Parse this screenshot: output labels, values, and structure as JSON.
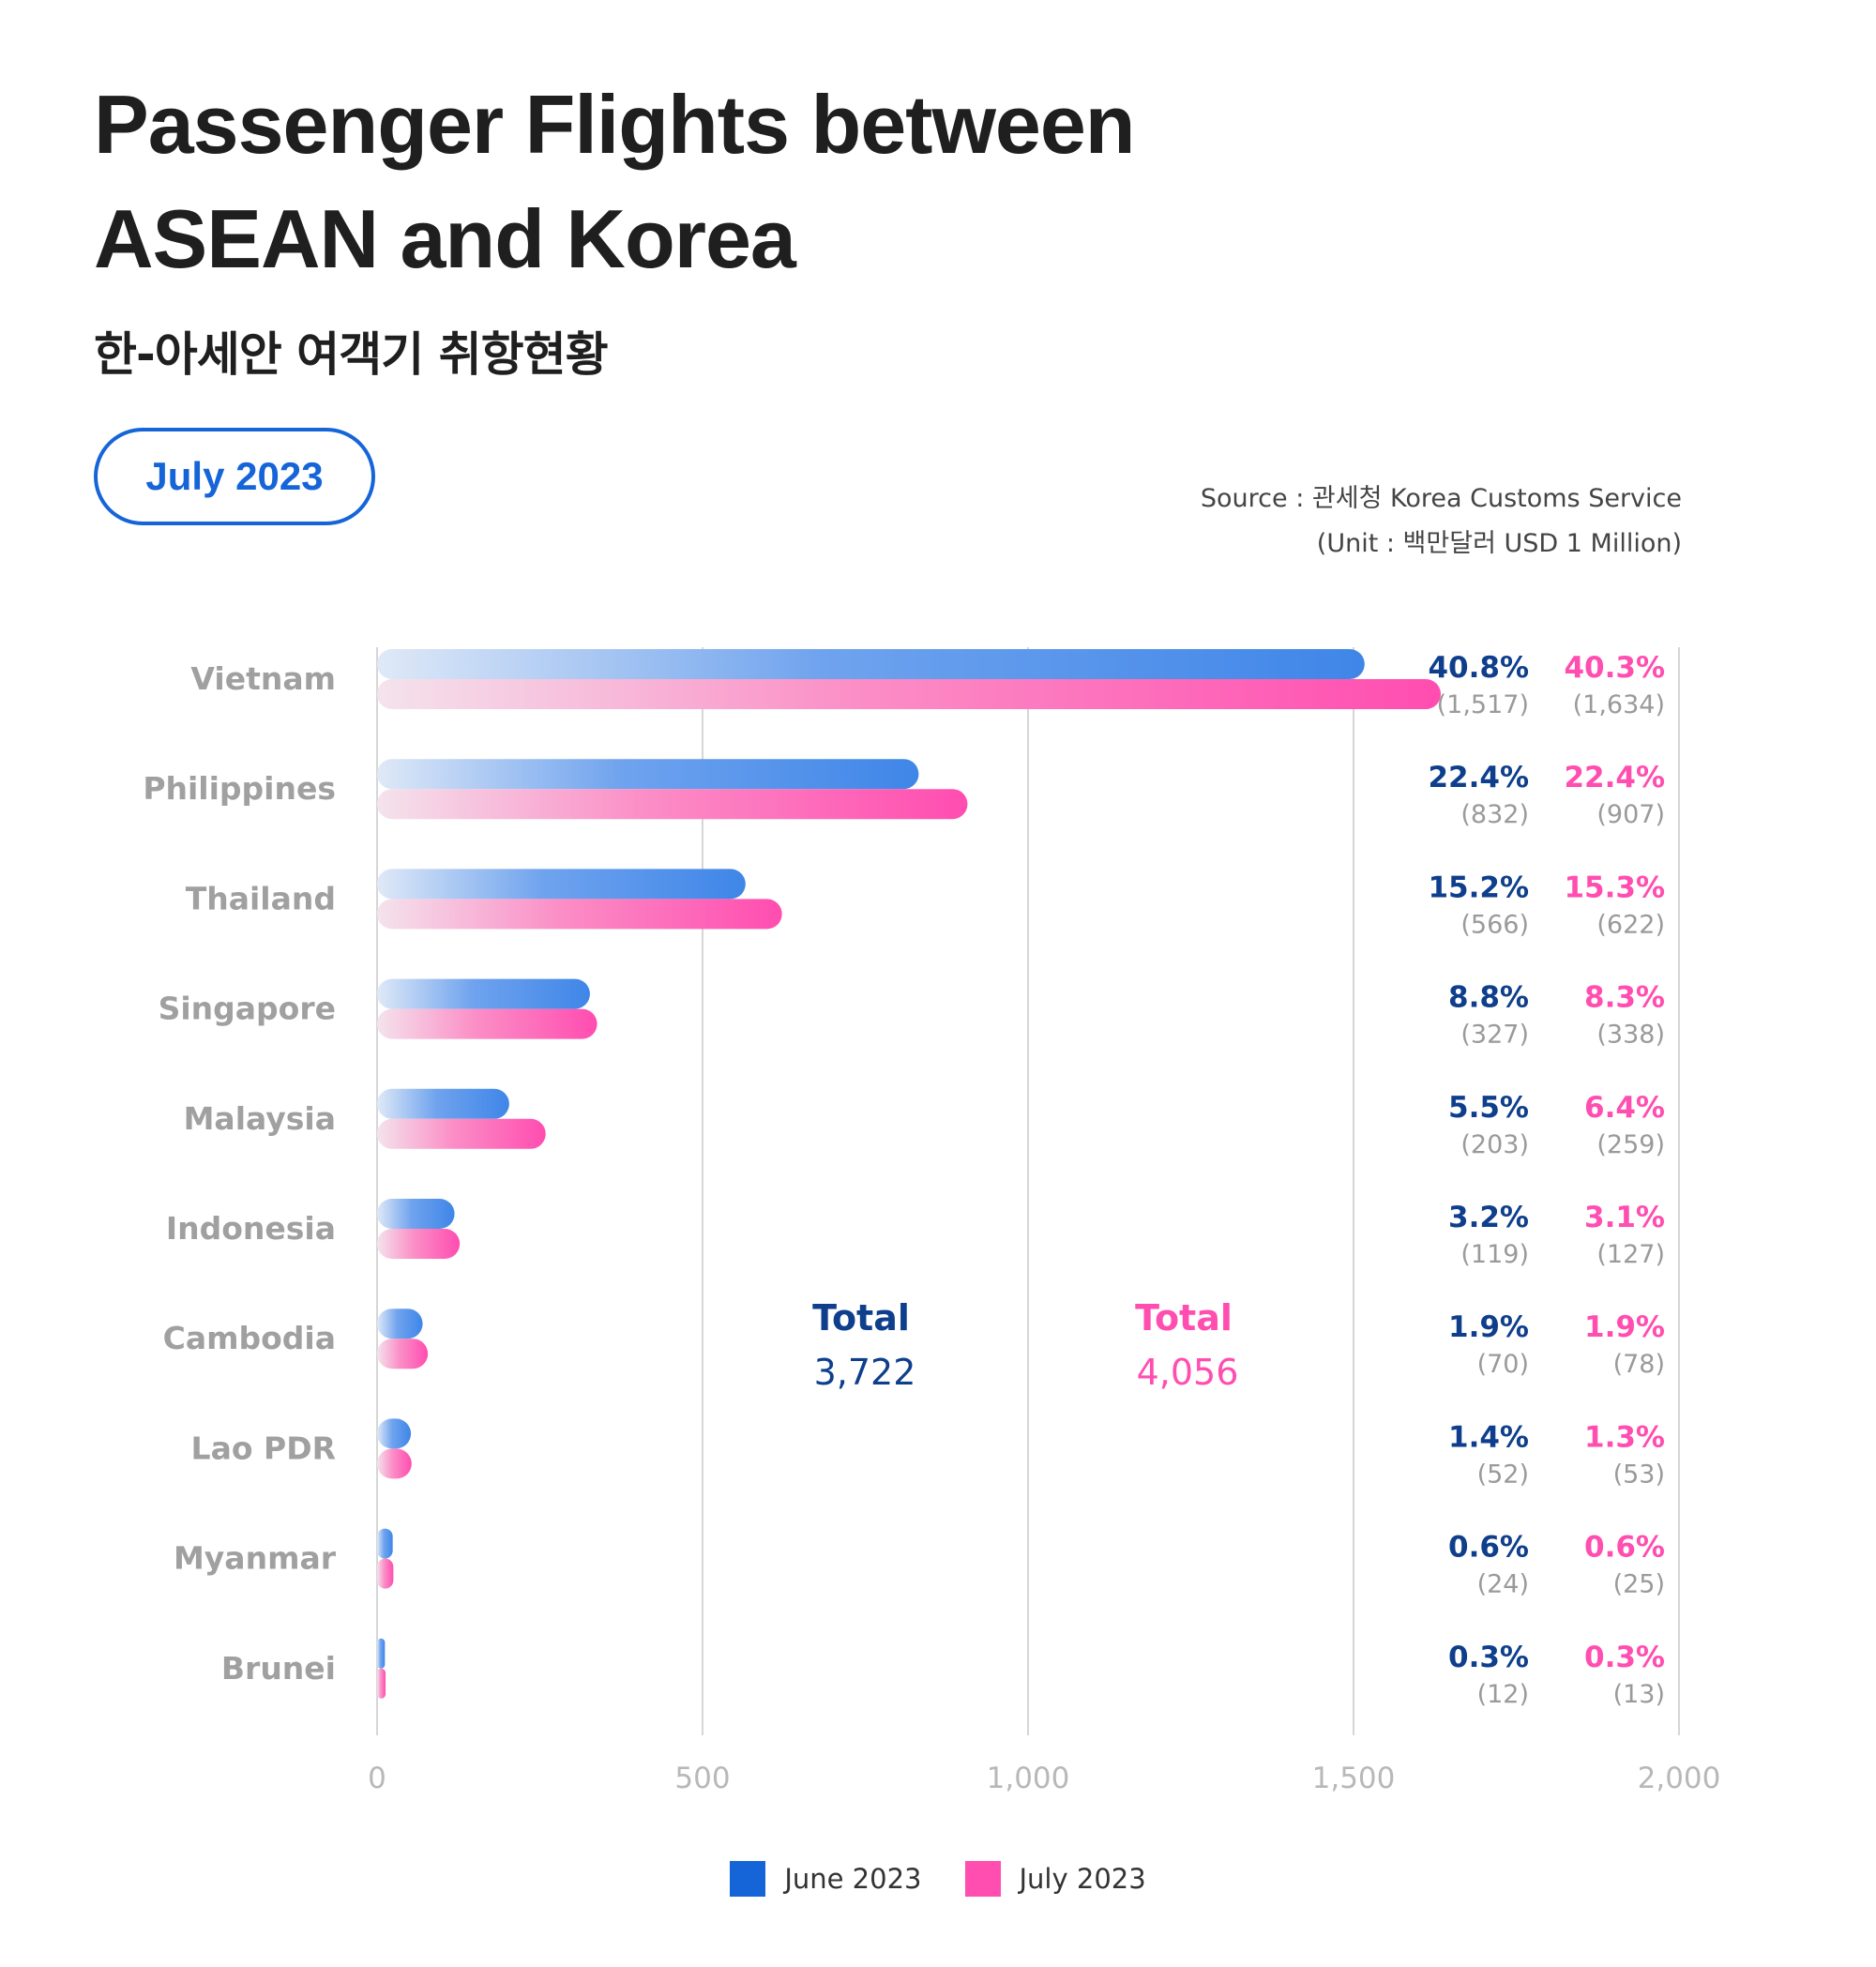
{
  "header": {
    "title_line1": "Passenger Flights between",
    "title_line2": "ASEAN and Korea",
    "subtitle": "한-아세안 여객기 취항현황",
    "period": "July 2023",
    "source": "Source : 관세청 Korea Customs Service",
    "unit": "(Unit : 백만달러 USD 1 Million)"
  },
  "colors": {
    "june": "#1565d8",
    "june_pct": "#0f3f8c",
    "july": "#ff4db0",
    "grid": "#d6d6d6",
    "axis_text": "#b8b8b8",
    "category_text": "#a0a0a0",
    "paren_text": "#9a9a9a"
  },
  "chart_data": {
    "type": "bar",
    "orientation": "horizontal",
    "categories": [
      "Vietnam",
      "Philippines",
      "Thailand",
      "Singapore",
      "Malaysia",
      "Indonesia",
      "Cambodia",
      "Lao PDR",
      "Myanmar",
      "Brunei"
    ],
    "series": [
      {
        "name": "June 2023",
        "values": [
          1517,
          832,
          566,
          327,
          203,
          119,
          70,
          52,
          24,
          12
        ],
        "values_label": [
          "(1,517)",
          "(832)",
          "(566)",
          "(327)",
          "(203)",
          "(119)",
          "(70)",
          "(52)",
          "(24)",
          "(12)"
        ],
        "percent": [
          "40.8%",
          "22.4%",
          "15.2%",
          "8.8%",
          "5.5%",
          "3.2%",
          "1.9%",
          "1.4%",
          "0.6%",
          "0.3%"
        ],
        "total_label": "Total",
        "total": "3,722"
      },
      {
        "name": "July 2023",
        "values": [
          1634,
          907,
          622,
          338,
          259,
          127,
          78,
          53,
          25,
          13
        ],
        "values_label": [
          "(1,634)",
          "(907)",
          "(622)",
          "(338)",
          "(259)",
          "(127)",
          "(78)",
          "(53)",
          "(25)",
          "(13)"
        ],
        "percent": [
          "40.3%",
          "22.4%",
          "15.3%",
          "8.3%",
          "6.4%",
          "3.1%",
          "1.9%",
          "1.3%",
          "0.6%",
          "0.3%"
        ],
        "total_label": "Total",
        "total": "4,056"
      }
    ],
    "xlim": [
      0,
      2000
    ],
    "xticks": [
      0,
      500,
      1000,
      1500,
      2000
    ],
    "xtick_labels": [
      "0",
      "500",
      "1,000",
      "1,500",
      "2,000"
    ],
    "grid": true,
    "legend": "bottom-center"
  },
  "legend": {
    "june_label": "June 2023",
    "july_label": "July 2023"
  }
}
